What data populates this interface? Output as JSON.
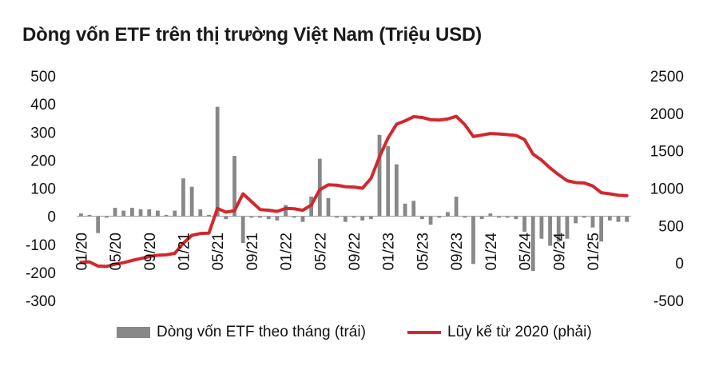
{
  "title": "Dòng vốn ETF trên thị trường Việt Nam (Triệu USD)",
  "chart_data": {
    "type": "bar+line",
    "title": "Dòng vốn ETF trên thị trường Việt Nam (Triệu USD)",
    "x_tick_labels": [
      "01/20",
      "05/20",
      "09/20",
      "01/21",
      "05/21",
      "09/21",
      "01/22",
      "05/22",
      "09/22",
      "01/23",
      "05/23",
      "09/23",
      "01/24",
      "05/24",
      "09/24",
      "01/25"
    ],
    "left_axis": {
      "ylim": [
        -300,
        500
      ],
      "ticks": [
        -300,
        -200,
        -100,
        0,
        100,
        200,
        300,
        400,
        500
      ]
    },
    "right_axis": {
      "ylim": [
        -500,
        2500
      ],
      "ticks": [
        -500,
        0,
        500,
        1000,
        1500,
        2000,
        2500
      ]
    },
    "grid": false,
    "legend_position": "bottom",
    "series": [
      {
        "name": "Dòng vốn ETF theo tháng (trái)",
        "type": "bar",
        "axis": "left",
        "color": "#888888",
        "values": [
          10,
          5,
          -60,
          -5,
          30,
          20,
          30,
          25,
          25,
          20,
          5,
          20,
          135,
          105,
          25,
          5,
          390,
          -10,
          215,
          -95,
          -5,
          -5,
          -10,
          -15,
          40,
          -5,
          -20,
          70,
          205,
          65,
          -5,
          -20,
          -5,
          -15,
          -10,
          290,
          250,
          185,
          45,
          55,
          -10,
          -30,
          -5,
          15,
          70,
          -5,
          -170,
          -10,
          10,
          -5,
          -5,
          -10,
          -55,
          -195,
          -80,
          -105,
          -90,
          -80,
          -25,
          -5,
          -40,
          -90,
          -15,
          -20,
          -20
        ]
      },
      {
        "name": "Lũy kế từ 2020 (phải)",
        "type": "line",
        "axis": "right",
        "color": "#d3272e",
        "values": [
          10,
          15,
          -40,
          -45,
          -15,
          5,
          35,
          60,
          85,
          105,
          110,
          130,
          265,
          370,
          395,
          400,
          730,
          680,
          700,
          925,
          820,
          715,
          705,
          690,
          730,
          725,
          705,
          775,
          980,
          1045,
          1040,
          1020,
          1015,
          1000,
          1130,
          1420,
          1670,
          1855,
          1900,
          1955,
          1945,
          1915,
          1910,
          1925,
          1960,
          1850,
          1690,
          1710,
          1730,
          1725,
          1715,
          1705,
          1650,
          1455,
          1375,
          1270,
          1180,
          1100,
          1075,
          1070,
          1030,
          940,
          925,
          905,
          900
        ]
      }
    ]
  }
}
